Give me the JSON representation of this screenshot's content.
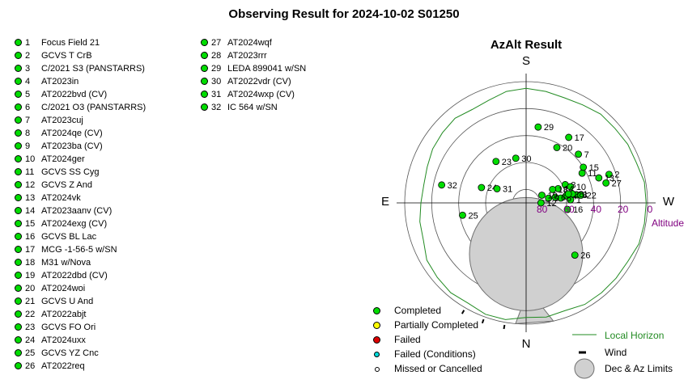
{
  "title": "Observing Result for 2024-10-02 S01250",
  "targets_left": [
    {
      "num": "1",
      "name": "Focus Field 21"
    },
    {
      "num": "2",
      "name": "GCVS T CrB"
    },
    {
      "num": "3",
      "name": "C/2021 S3 (PANSTARRS)"
    },
    {
      "num": "4",
      "name": "AT2023in"
    },
    {
      "num": "5",
      "name": "AT2022bvd (CV)"
    },
    {
      "num": "6",
      "name": "C/2021 O3 (PANSTARRS)"
    },
    {
      "num": "7",
      "name": "AT2023cuj"
    },
    {
      "num": "8",
      "name": "AT2024qe (CV)"
    },
    {
      "num": "9",
      "name": "AT2023ba (CV)"
    },
    {
      "num": "10",
      "name": "AT2024ger"
    },
    {
      "num": "11",
      "name": "GCVS SS Cyg"
    },
    {
      "num": "12",
      "name": "GCVS Z And"
    },
    {
      "num": "13",
      "name": "AT2024vk"
    },
    {
      "num": "14",
      "name": "AT2023aanv (CV)"
    },
    {
      "num": "15",
      "name": "AT2024exg (CV)"
    },
    {
      "num": "16",
      "name": "GCVS BL Lac"
    },
    {
      "num": "17",
      "name": "MCG -1-56-5 w/SN"
    },
    {
      "num": "18",
      "name": "M31 w/Nova"
    },
    {
      "num": "19",
      "name": "AT2022dbd (CV)"
    },
    {
      "num": "20",
      "name": "AT2024woi"
    },
    {
      "num": "21",
      "name": "GCVS U And"
    },
    {
      "num": "22",
      "name": "AT2022abjt"
    },
    {
      "num": "23",
      "name": "GCVS FO Ori"
    },
    {
      "num": "24",
      "name": "AT2024uxx"
    },
    {
      "num": "25",
      "name": "GCVS YZ Cnc"
    },
    {
      "num": "26",
      "name": "AT2022req"
    }
  ],
  "targets_right": [
    {
      "num": "27",
      "name": "AT2024wqf"
    },
    {
      "num": "28",
      "name": "AT2023rrr"
    },
    {
      "num": "29",
      "name": "LEDA 899041 w/SN"
    },
    {
      "num": "30",
      "name": "AT2022vdr (CV)"
    },
    {
      "num": "31",
      "name": "AT2024wxp (CV)"
    },
    {
      "num": "32",
      "name": "IC 564 w/SN"
    }
  ],
  "chart_data": {
    "type": "scatter",
    "projection": "polar-azimuth-altitude",
    "title": "AzAlt Result",
    "cardinals": {
      "top": "S",
      "bottom": "N",
      "left": "E",
      "right": "W"
    },
    "altitude_ticks": [
      "80",
      "60",
      "40",
      "20",
      "0"
    ],
    "altitude_label": "Altitude",
    "altitude_rings": [
      0,
      20,
      40,
      60,
      80
    ],
    "status_color": "#00dd00",
    "points": [
      {
        "label": "1",
        "az": 266,
        "alt": 57
      },
      {
        "label": "2",
        "az": 251,
        "alt": 25
      },
      {
        "label": "3",
        "az": 261,
        "alt": 52
      },
      {
        "label": "4",
        "az": 260,
        "alt": 60
      },
      {
        "label": "5",
        "az": 262,
        "alt": 64
      },
      {
        "label": "6",
        "az": 259,
        "alt": 68
      },
      {
        "label": "7",
        "az": 227,
        "alt": 37
      },
      {
        "label": "8",
        "az": 245,
        "alt": 58
      },
      {
        "label": "9",
        "az": 258,
        "alt": 73
      },
      {
        "label": "10",
        "az": 250,
        "alt": 55
      },
      {
        "label": "11",
        "az": 242,
        "alt": 43
      },
      {
        "label": "12",
        "az": 270,
        "alt": 79
      },
      {
        "label": "13",
        "az": 251,
        "alt": 33
      },
      {
        "label": "14",
        "az": 246,
        "alt": 64
      },
      {
        "label": "15",
        "az": 238,
        "alt": 40
      },
      {
        "label": "16",
        "az": 279,
        "alt": 59
      },
      {
        "label": "17",
        "az": 213,
        "alt": 32
      },
      {
        "label": "18",
        "az": 243,
        "alt": 68
      },
      {
        "label": "19",
        "az": 244,
        "alt": 77
      },
      {
        "label": "20",
        "az": 209,
        "alt": 43
      },
      {
        "label": "21",
        "az": 259,
        "alt": 55
      },
      {
        "label": "22",
        "az": 262,
        "alt": 49
      },
      {
        "label": "23",
        "az": 144,
        "alt": 52
      },
      {
        "label": "24",
        "az": 109,
        "alt": 55
      },
      {
        "label": "25",
        "az": 79,
        "alt": 42
      },
      {
        "label": "26",
        "az": 317,
        "alt": 37
      },
      {
        "label": "27",
        "az": 256,
        "alt": 29
      },
      {
        "label": "28",
        "az": 258,
        "alt": 58
      },
      {
        "label": "29",
        "az": 189,
        "alt": 33
      },
      {
        "label": "30",
        "az": 167,
        "alt": 56
      },
      {
        "label": "31",
        "az": 116,
        "alt": 66
      },
      {
        "label": "32",
        "az": 102,
        "alt": 26
      }
    ],
    "limits_circle": {
      "az": 0,
      "alt": 52,
      "radius_deg": 14
    },
    "limits_wedge": {
      "from": {
        "az": 0,
        "alt": 34
      },
      "to": [
        {
          "az": 5,
          "alt": 0
        },
        {
          "az": 347,
          "alt": 0
        }
      ]
    },
    "local_horizon": [
      {
        "az": 0,
        "alt": 5
      },
      {
        "az": 10,
        "alt": 2
      },
      {
        "az": 20,
        "alt": 2
      },
      {
        "az": 30,
        "alt": 4
      },
      {
        "az": 40,
        "alt": 3
      },
      {
        "az": 50,
        "alt": 4
      },
      {
        "az": 60,
        "alt": 5
      },
      {
        "az": 70,
        "alt": 9
      },
      {
        "az": 80,
        "alt": 10
      },
      {
        "az": 90,
        "alt": 12
      },
      {
        "az": 100,
        "alt": 13
      },
      {
        "az": 110,
        "alt": 12
      },
      {
        "az": 120,
        "alt": 10
      },
      {
        "az": 130,
        "alt": 9
      },
      {
        "az": 140,
        "alt": 8
      },
      {
        "az": 150,
        "alt": 10
      },
      {
        "az": 160,
        "alt": 9
      },
      {
        "az": 170,
        "alt": 6
      },
      {
        "az": 180,
        "alt": 5
      },
      {
        "az": 190,
        "alt": 6
      },
      {
        "az": 200,
        "alt": 7
      },
      {
        "az": 210,
        "alt": 6
      },
      {
        "az": 220,
        "alt": 4
      },
      {
        "az": 230,
        "alt": 4
      },
      {
        "az": 240,
        "alt": 3
      },
      {
        "az": 250,
        "alt": 3
      },
      {
        "az": 260,
        "alt": 1
      },
      {
        "az": 270,
        "alt": 1
      },
      {
        "az": 280,
        "alt": 1
      },
      {
        "az": 290,
        "alt": 1
      },
      {
        "az": 300,
        "alt": 3
      },
      {
        "az": 310,
        "alt": 3
      },
      {
        "az": 320,
        "alt": 3
      },
      {
        "az": 330,
        "alt": 3
      },
      {
        "az": 340,
        "alt": 5
      },
      {
        "az": 350,
        "alt": 4
      }
    ],
    "wind_marks": [
      {
        "az": 30,
        "alt": 0
      },
      {
        "az": 20,
        "alt": 0
      },
      {
        "az": 10,
        "alt": 0
      }
    ],
    "limits_color": "#d0d0d0",
    "horizon_color": "#228b22",
    "altitude_color": "#800080"
  },
  "legend": {
    "completed": "Completed",
    "partial": "Partially Completed",
    "failed": "Failed",
    "failed_cond": "Failed (Conditions)",
    "missed": "Missed or Cancelled",
    "horizon": "Local Horizon",
    "wind": "Wind",
    "limits": "Dec & Az Limits",
    "colors": {
      "completed": "#00dd00",
      "partial": "#ffff00",
      "failed": "#dd0000",
      "failed_cond": "#00dddd",
      "missed": "#ffffff"
    }
  }
}
